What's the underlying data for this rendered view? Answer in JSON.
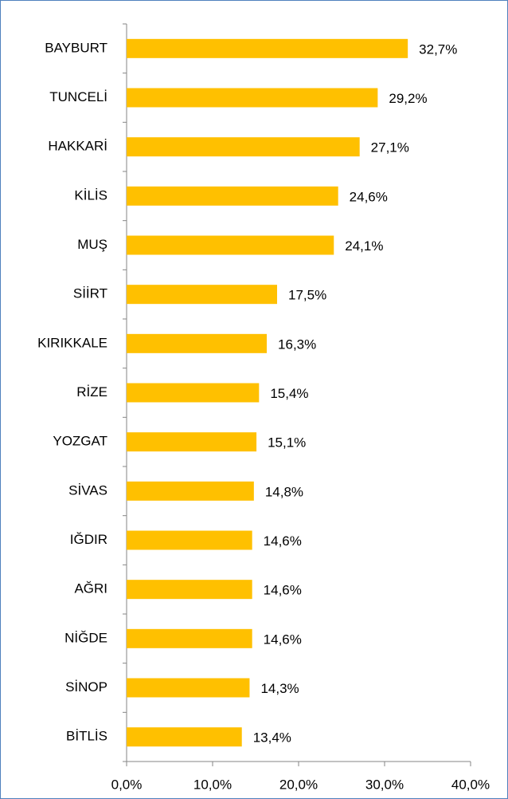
{
  "chart_data": {
    "type": "bar",
    "orientation": "horizontal",
    "categories": [
      "BAYBURT",
      "TUNCELİ",
      "HAKKARİ",
      "KİLİS",
      "MUŞ",
      "SİİRT",
      "KIRIKKALE",
      "RİZE",
      "YOZGAT",
      "SİVAS",
      "IĞDIR",
      "AĞRI",
      "NİĞDE",
      "SİNOP",
      "BİTLİS"
    ],
    "values": [
      32.7,
      29.2,
      27.1,
      24.6,
      24.1,
      17.5,
      16.3,
      15.4,
      15.1,
      14.8,
      14.6,
      14.6,
      14.6,
      14.3,
      13.4
    ],
    "value_labels": [
      "32,7%",
      "29,2%",
      "27,1%",
      "24,6%",
      "24,1%",
      "17,5%",
      "16,3%",
      "15,4%",
      "15,1%",
      "14,8%",
      "14,6%",
      "14,6%",
      "14,6%",
      "14,3%",
      "13,4%"
    ],
    "color": "#ffc000",
    "xlim": [
      0,
      40
    ],
    "xticks": [
      {
        "value": 0,
        "label": "0,0%"
      },
      {
        "value": 10,
        "label": "10,0%"
      },
      {
        "value": 20,
        "label": "20,0%"
      },
      {
        "value": 30,
        "label": "30,0%"
      },
      {
        "value": 40,
        "label": "40,0%"
      }
    ],
    "grid": false
  }
}
